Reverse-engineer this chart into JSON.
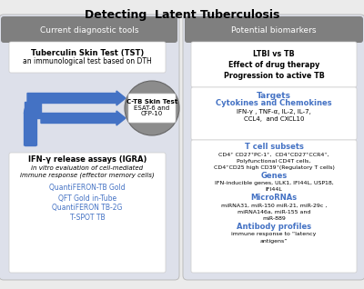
{
  "title": "Detecting  Latent Tuberculosis",
  "title_fontsize": 9,
  "bg_color": "#ebebeb",
  "left_panel_color": "#dde0ea",
  "right_panel_color": "#dde0ea",
  "header_color": "#7f7f7f",
  "white_box_color": "#ffffff",
  "arrow_color": "#4472c4",
  "circle_color": "#8c8c8c",
  "left_header": "Current diagnostic tools",
  "right_header": "Potential biomarkers",
  "tst_title": "Tuberculin Skin Test (TST)",
  "tst_subtitle": "an immunological test based on DTH",
  "ctb_line1": "C-TB Skin Test",
  "ctb_line2": "ESAT-6 and",
  "ctb_line3": "CFP-10",
  "igra_title": "IFN-γ release assays (IGRA)",
  "igra_list": [
    "QuantiFERON-TB Gold",
    "QFT Gold in-Tube",
    "QuantiFERON TB-2G",
    "T-SPOT TB"
  ],
  "biomarker_box1_lines": [
    "LTBI vs TB",
    "Effect of drug therapy",
    "Progression to active TB"
  ],
  "targets_title": "Targets",
  "targets_subtitle": "Cytokines and Chemokines",
  "targets_line1": "IFN-γ , TNF-α, IL-2, IL-7,",
  "targets_line2": "CCL4,  and CXCL10",
  "tcell_title": "T cell subsets",
  "tcell_line1": "CD4⁺ CD27⁺PC-1⁺,  CD4⁺CD27⁺CCR4⁺,",
  "tcell_line2": "Polyfunctional CD4T cells,",
  "tcell_line3": "CD4⁺CD25 high CD39⁺(Regulatory T cells)",
  "genes_title": "Genes",
  "genes_line1": "IFN-inducible genes, ULK1, IFI44L, USP18,",
  "genes_line2": "IFI44L",
  "mirna_title": "MicroRNAs",
  "mirna_line1": "miRNA31, miR-150 miR-21, miR-29c ,",
  "mirna_line2": "miRNA146a, miR-155 and",
  "mirna_line3": "miR-889",
  "antibody_title": "Antibody profiles",
  "antibody_line1": "immune response to “latency",
  "antibody_line2": "antigens”",
  "text_blue": "#4472c4"
}
